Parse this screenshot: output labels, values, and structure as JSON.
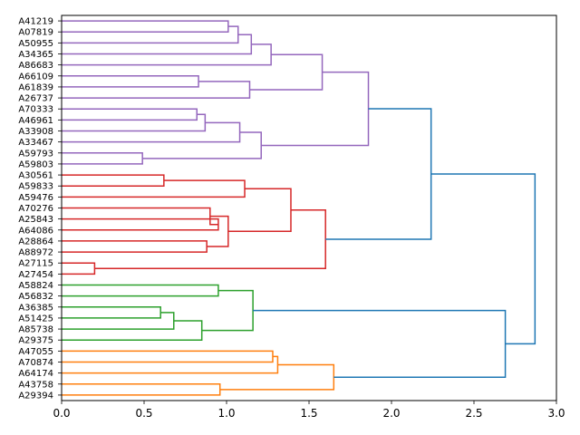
{
  "chart_data": {
    "type": "dendrogram",
    "orientation": "horizontal",
    "title": "",
    "xlabel": "",
    "ylabel": "",
    "xlim": [
      0,
      3.0
    ],
    "xticks": [
      0.0,
      0.5,
      1.0,
      1.5,
      2.0,
      2.5,
      3.0
    ],
    "xtick_labels": [
      "0.0",
      "0.5",
      "1.0",
      "1.5",
      "2.0",
      "2.5",
      "3.0"
    ],
    "leaves": [
      "A41219",
      "A07819",
      "A50955",
      "A34365",
      "A86683",
      "A66109",
      "A61839",
      "A26737",
      "A70333",
      "A46961",
      "A33908",
      "A33467",
      "A59793",
      "A59803",
      "A30561",
      "A59833",
      "A59476",
      "A70276",
      "A25843",
      "A64086",
      "A28864",
      "A88972",
      "A27115",
      "A27454",
      "A58824",
      "A56832",
      "A36385",
      "A51425",
      "A85738",
      "A29375",
      "A47055",
      "A70874",
      "A64174",
      "A43758",
      "A29394"
    ],
    "colors": {
      "purple": "#9467bd",
      "red": "#d62728",
      "green": "#2ca02c",
      "orange": "#ff7f0e",
      "blue": "#1f77b4"
    },
    "links": [
      {
        "a": 0,
        "b": 1,
        "h": 1.01,
        "c": "purple"
      },
      {
        "a": "L0",
        "b": 2,
        "h": 1.07,
        "c": "purple"
      },
      {
        "a": "L1",
        "b": 3,
        "h": 1.15,
        "c": "purple"
      },
      {
        "a": "L2",
        "b": 4,
        "h": 1.27,
        "c": "purple"
      },
      {
        "a": 5,
        "b": 6,
        "h": 0.83,
        "c": "purple"
      },
      {
        "a": "L4",
        "b": 7,
        "h": 1.14,
        "c": "purple"
      },
      {
        "a": "L3",
        "b": "L5",
        "h": 1.58,
        "c": "purple"
      },
      {
        "a": 8,
        "b": 9,
        "h": 0.82,
        "c": "purple"
      },
      {
        "a": "L7",
        "b": 10,
        "h": 0.87,
        "c": "purple"
      },
      {
        "a": "L8",
        "b": 11,
        "h": 1.08,
        "c": "purple"
      },
      {
        "a": 12,
        "b": 13,
        "h": 0.49,
        "c": "purple"
      },
      {
        "a": "L9",
        "b": "L10",
        "h": 1.21,
        "c": "purple"
      },
      {
        "a": "L6",
        "b": "L11",
        "h": 1.86,
        "c": "purple"
      },
      {
        "a": 14,
        "b": 15,
        "h": 0.62,
        "c": "red"
      },
      {
        "a": "L13",
        "b": 16,
        "h": 1.11,
        "c": "red"
      },
      {
        "a": 18,
        "b": 19,
        "h": 0.95,
        "c": "red"
      },
      {
        "a": 17,
        "b": "L15",
        "h": 0.9,
        "c": "red"
      },
      {
        "a": 20,
        "b": 21,
        "h": 0.88,
        "c": "red"
      },
      {
        "a": "L16",
        "b": "L17",
        "h": 1.01,
        "c": "red"
      },
      {
        "a": "L14",
        "b": "L18",
        "h": 1.39,
        "c": "red"
      },
      {
        "a": 22,
        "b": 23,
        "h": 0.2,
        "c": "red"
      },
      {
        "a": "L19",
        "b": "L20",
        "h": 1.6,
        "c": "red"
      },
      {
        "a": "L12",
        "b": "L21",
        "h": 2.24,
        "c": "blue"
      },
      {
        "a": 24,
        "b": 25,
        "h": 0.95,
        "c": "green"
      },
      {
        "a": 26,
        "b": 27,
        "h": 0.6,
        "c": "green"
      },
      {
        "a": "L24",
        "b": 28,
        "h": 0.68,
        "c": "green"
      },
      {
        "a": "L25",
        "b": 29,
        "h": 0.85,
        "c": "green"
      },
      {
        "a": "L23",
        "b": "L26",
        "h": 1.16,
        "c": "green"
      },
      {
        "a": 30,
        "b": 31,
        "h": 1.28,
        "c": "orange"
      },
      {
        "a": "L28",
        "b": 32,
        "h": 1.31,
        "c": "orange"
      },
      {
        "a": 33,
        "b": 34,
        "h": 0.96,
        "c": "orange"
      },
      {
        "a": "L29",
        "b": "L30",
        "h": 1.65,
        "c": "orange"
      },
      {
        "a": "L27",
        "b": "L31",
        "h": 2.69,
        "c": "blue"
      },
      {
        "a": "L22",
        "b": "L32",
        "h": 2.87,
        "c": "blue"
      }
    ]
  }
}
